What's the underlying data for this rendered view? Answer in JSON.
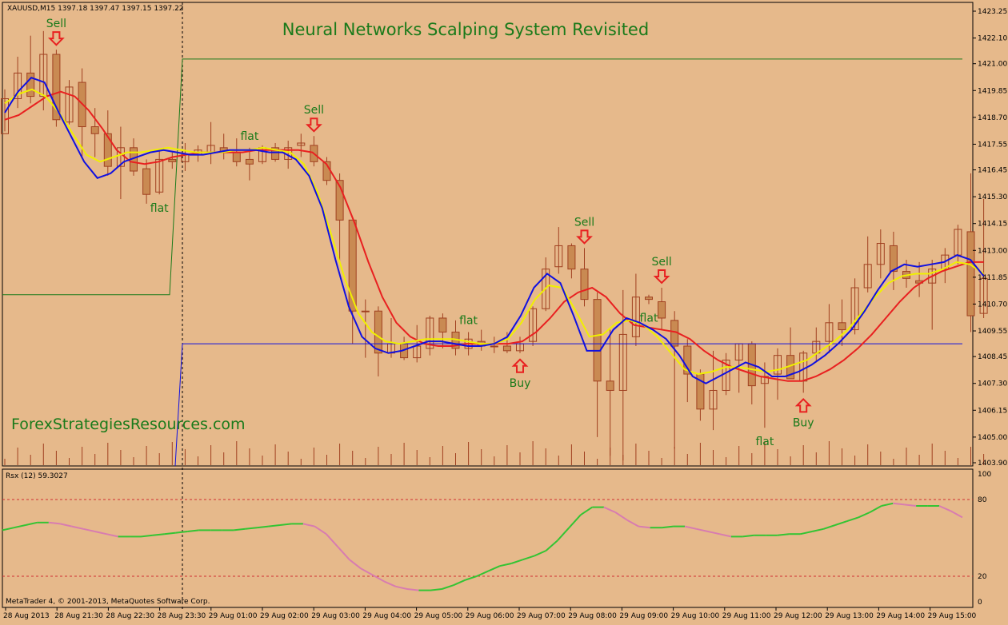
{
  "header": {
    "symbol_info": "XAUUSD,M15  1397.18 1397.47 1397.15 1397.22",
    "title": "Neural Networks Scalping System Revisited",
    "watermark": "ForexStrategiesResources.com",
    "copyright": "MetaTrader 4, © 2001-2013, MetaQuotes Software Corp."
  },
  "colors": {
    "background": "#e6b98b",
    "candle": "#c98a52",
    "wick": "#a04020",
    "blue_line": "#1010e0",
    "yellow_line": "#f0f000",
    "red_line": "#e82020",
    "green_line": "#1a7a1a",
    "signal_text": "#1a7a1a",
    "arrow": "#e82020",
    "rsx_up": "#33c433",
    "rsx_down": "#d87cb0",
    "level_line": "#d03030"
  },
  "annotations": [
    {
      "text": "Sell",
      "type": "sell",
      "bar": 4
    },
    {
      "text": "flat",
      "type": "flat",
      "bar": 12
    },
    {
      "text": "flat",
      "type": "flat",
      "bar": 19
    },
    {
      "text": "Sell",
      "type": "sell",
      "bar": 24
    },
    {
      "text": "flat",
      "type": "flat",
      "bar": 36
    },
    {
      "text": "Buy",
      "type": "buy",
      "bar": 40
    },
    {
      "text": "Sell",
      "type": "sell",
      "bar": 45
    },
    {
      "text": "flat",
      "type": "flat",
      "bar": 50
    },
    {
      "text": "Sell",
      "type": "sell",
      "bar": 51
    },
    {
      "text": "flat",
      "type": "flat",
      "bar": 59
    },
    {
      "text": "Buy",
      "type": "buy",
      "bar": 62
    }
  ],
  "chart_data": [
    {
      "type": "candlestick",
      "ylim": [
        1403.9,
        1423.25
      ],
      "y_ticks": [
        "1423.25",
        "1422.10",
        "1421.00",
        "1419.85",
        "1418.70",
        "1417.55",
        "1416.45",
        "1415.30",
        "1414.15",
        "1413.00",
        "1411.85",
        "1410.70",
        "1409.55",
        "1408.45",
        "1407.30",
        "1406.15",
        "1405.00",
        "1403.90"
      ],
      "x_ticks": [
        "28 Aug 2013",
        "28 Aug 21:30",
        "28 Aug 22:30",
        "28 Aug 23:30",
        "29 Aug 01:00",
        "29 Aug 02:00",
        "29 Aug 03:00",
        "29 Aug 04:00",
        "29 Aug 05:00",
        "29 Aug 06:00",
        "29 Aug 07:00",
        "29 Aug 08:00",
        "29 Aug 09:00",
        "29 Aug 10:00",
        "29 Aug 11:00",
        "29 Aug 12:00",
        "29 Aug 13:00",
        "29 Aug 14:00",
        "29 Aug 15:00"
      ],
      "ohlc": [
        [
          1418.0,
          1419.9,
          1418.1,
          1419.5
        ],
        [
          1419.5,
          1421.3,
          1419.1,
          1420.6
        ],
        [
          1420.6,
          1422.2,
          1419.3,
          1419.6
        ],
        [
          1419.6,
          1422.4,
          1419.0,
          1421.4
        ],
        [
          1421.4,
          1421.6,
          1418.3,
          1418.6
        ],
        [
          1418.5,
          1420.3,
          1418.4,
          1420.0
        ],
        [
          1420.2,
          1420.8,
          1417.0,
          1418.3
        ],
        [
          1418.3,
          1419.1,
          1417.0,
          1418.0
        ],
        [
          1418.0,
          1419.0,
          1416.2,
          1416.6
        ],
        [
          1416.6,
          1418.3,
          1415.2,
          1417.4
        ],
        [
          1417.4,
          1417.8,
          1416.2,
          1416.4
        ],
        [
          1416.5,
          1416.9,
          1415.0,
          1415.4
        ],
        [
          1415.5,
          1417.3,
          1415.4,
          1416.9
        ],
        [
          1416.9,
          1417.2,
          1416.5,
          1416.8
        ],
        [
          1416.8,
          1417.6,
          1416.4,
          1417.1
        ],
        [
          1417.1,
          1417.5,
          1416.8,
          1417.3
        ],
        [
          1417.2,
          1418.5,
          1416.7,
          1417.5
        ],
        [
          1417.4,
          1418.0,
          1416.9,
          1417.2
        ],
        [
          1417.2,
          1417.8,
          1416.6,
          1416.8
        ],
        [
          1416.9,
          1417.4,
          1416.0,
          1416.7
        ],
        [
          1416.8,
          1417.5,
          1416.7,
          1417.4
        ],
        [
          1417.4,
          1417.6,
          1416.8,
          1416.9
        ],
        [
          1416.9,
          1417.7,
          1416.5,
          1417.4
        ],
        [
          1417.5,
          1418.0,
          1417.0,
          1417.6
        ],
        [
          1417.5,
          1417.9,
          1416.6,
          1416.8
        ],
        [
          1416.8,
          1417.0,
          1415.8,
          1416.0
        ],
        [
          1416.0,
          1416.3,
          1412.5,
          1414.3
        ],
        [
          1414.3,
          1414.3,
          1409.0,
          1410.4
        ],
        [
          1410.4,
          1410.9,
          1408.4,
          1410.4
        ],
        [
          1410.4,
          1410.6,
          1407.6,
          1408.6
        ],
        [
          1408.6,
          1410.1,
          1408.4,
          1409.0
        ],
        [
          1409.0,
          1409.3,
          1408.3,
          1408.4
        ],
        [
          1408.4,
          1409.8,
          1408.2,
          1408.9
        ],
        [
          1408.8,
          1410.2,
          1408.5,
          1410.1
        ],
        [
          1410.1,
          1410.3,
          1408.8,
          1409.5
        ],
        [
          1409.5,
          1410.0,
          1408.5,
          1408.8
        ],
        [
          1408.8,
          1409.5,
          1408.5,
          1409.2
        ],
        [
          1409.1,
          1409.6,
          1408.7,
          1408.9
        ],
        [
          1408.9,
          1409.3,
          1408.6,
          1408.9
        ],
        [
          1408.9,
          1409.5,
          1408.6,
          1408.7
        ],
        [
          1408.7,
          1409.3,
          1408.6,
          1409.0
        ],
        [
          1409.1,
          1410.6,
          1408.9,
          1410.5
        ],
        [
          1410.5,
          1412.7,
          1410.4,
          1412.2
        ],
        [
          1412.3,
          1414.0,
          1412.0,
          1413.2
        ],
        [
          1413.2,
          1413.3,
          1411.8,
          1412.2
        ],
        [
          1412.2,
          1413.1,
          1410.6,
          1410.9
        ],
        [
          1410.9,
          1411.2,
          1405.0,
          1407.4
        ],
        [
          1407.4,
          1409.6,
          1404.2,
          1407.0
        ],
        [
          1407.0,
          1411.3,
          1404.0,
          1409.4
        ],
        [
          1409.3,
          1412.0,
          1408.9,
          1411.0
        ],
        [
          1411.0,
          1411.1,
          1410.7,
          1410.9
        ],
        [
          1410.8,
          1411.4,
          1409.6,
          1410.1
        ],
        [
          1410.0,
          1410.4,
          1404.5,
          1408.9
        ],
        [
          1408.9,
          1409.2,
          1406.5,
          1407.7
        ],
        [
          1407.7,
          1407.9,
          1405.7,
          1406.2
        ],
        [
          1406.2,
          1408.7,
          1405.3,
          1407.0
        ],
        [
          1407.0,
          1408.6,
          1406.8,
          1408.3
        ],
        [
          1408.3,
          1409.0,
          1406.9,
          1409.0
        ],
        [
          1409.0,
          1409.1,
          1406.4,
          1407.2
        ],
        [
          1407.3,
          1408.2,
          1405.4,
          1407.6
        ],
        [
          1407.7,
          1408.8,
          1406.6,
          1408.5
        ],
        [
          1408.5,
          1409.7,
          1407.5,
          1407.5
        ],
        [
          1407.4,
          1408.7,
          1406.9,
          1408.6
        ],
        [
          1408.6,
          1409.7,
          1408.2,
          1409.1
        ],
        [
          1409.1,
          1410.7,
          1408.6,
          1409.9
        ],
        [
          1409.9,
          1410.9,
          1408.9,
          1409.6
        ],
        [
          1409.6,
          1411.8,
          1409.4,
          1411.4
        ],
        [
          1411.4,
          1413.6,
          1411.2,
          1412.4
        ],
        [
          1412.4,
          1413.9,
          1411.8,
          1413.3
        ],
        [
          1413.2,
          1413.8,
          1411.3,
          1412.1
        ],
        [
          1412.1,
          1412.6,
          1411.4,
          1411.8
        ],
        [
          1411.7,
          1412.5,
          1411.0,
          1411.6
        ],
        [
          1411.6,
          1412.6,
          1409.6,
          1412.2
        ],
        [
          1412.2,
          1413.1,
          1411.6,
          1412.8
        ],
        [
          1412.8,
          1414.1,
          1412.4,
          1413.9
        ],
        [
          1413.8,
          1416.3,
          1409.5,
          1410.2
        ],
        [
          1410.3,
          1415.2,
          1410.1,
          1411.8
        ]
      ],
      "series": [
        {
          "name": "",
          "color": "#1010e0",
          "values": [
            1418.9,
            1419.8,
            1420.4,
            1420.2,
            1419.0,
            1417.9,
            1416.8,
            1416.1,
            1416.3,
            1416.8,
            1417.0,
            1417.2,
            1417.3,
            1417.2,
            1417.1,
            1417.1,
            1417.2,
            1417.3,
            1417.3,
            1417.3,
            1417.2,
            1417.2,
            1416.9,
            1416.2,
            1414.8,
            1412.6,
            1410.6,
            1409.3,
            1408.8,
            1408.6,
            1408.7,
            1408.9,
            1409.1,
            1409.1,
            1409.0,
            1408.9,
            1408.9,
            1409.0,
            1409.3,
            1410.2,
            1411.4,
            1412.0,
            1411.6,
            1410.2,
            1408.7,
            1408.7,
            1409.6,
            1410.1,
            1409.9,
            1409.6,
            1409.2,
            1408.5,
            1407.6,
            1407.3,
            1407.6,
            1407.9,
            1408.2,
            1408.0,
            1407.6,
            1407.6,
            1407.8,
            1408.1,
            1408.5,
            1409.0,
            1409.6,
            1410.4,
            1411.3,
            1412.1,
            1412.4,
            1412.3,
            1412.4,
            1412.5,
            1412.8,
            1412.6,
            1411.9
          ]
        },
        {
          "name": "",
          "color": "#f0f000",
          "values": [
            1419.3,
            1419.7,
            1419.9,
            1419.6,
            1418.9,
            1418.0,
            1417.1,
            1416.8,
            1417.0,
            1417.2,
            1417.2,
            1417.3,
            1417.4,
            1417.3,
            1417.2,
            1417.2,
            1417.2,
            1417.3,
            1417.3,
            1417.4,
            1417.3,
            1417.2,
            1416.7,
            1415.5,
            1413.7,
            1411.8,
            1410.3,
            1409.5,
            1409.1,
            1409.0,
            1409.1,
            1409.2,
            1409.2,
            1409.2,
            1409.1,
            1409.0,
            1409.0,
            1409.2,
            1409.9,
            1410.9,
            1411.5,
            1411.4,
            1410.4,
            1409.3,
            1409.4,
            1409.9,
            1410.0,
            1409.8,
            1409.3,
            1408.6,
            1407.9,
            1407.7,
            1407.8,
            1408.0,
            1408.0,
            1407.9,
            1407.8,
            1407.9,
            1408.1,
            1408.3,
            1408.7,
            1409.1,
            1409.6,
            1410.3,
            1411.0,
            1411.6,
            1411.9,
            1412.0,
            1412.0,
            1412.2,
            1412.5,
            1412.4,
            1412.0
          ]
        },
        {
          "name": "",
          "color": "#e82020",
          "values": [
            1418.6,
            1418.8,
            1419.2,
            1419.6,
            1419.8,
            1419.6,
            1419.0,
            1418.2,
            1417.3,
            1416.8,
            1416.7,
            1416.8,
            1417.0,
            1417.1,
            1417.2,
            1417.2,
            1417.2,
            1417.2,
            1417.3,
            1417.3,
            1417.3,
            1417.3,
            1417.2,
            1416.7,
            1415.7,
            1414.2,
            1412.5,
            1411.0,
            1409.9,
            1409.3,
            1409.0,
            1408.9,
            1408.9,
            1409.0,
            1409.0,
            1409.0,
            1409.0,
            1409.1,
            1409.5,
            1410.1,
            1410.8,
            1411.2,
            1411.4,
            1411.0,
            1410.3,
            1409.8,
            1409.7,
            1409.6,
            1409.5,
            1409.2,
            1408.7,
            1408.3,
            1408.0,
            1407.8,
            1407.6,
            1407.5,
            1407.4,
            1407.4,
            1407.6,
            1407.9,
            1408.3,
            1408.8,
            1409.4,
            1410.1,
            1410.8,
            1411.4,
            1411.8,
            1412.1,
            1412.3,
            1412.5,
            1412.5
          ]
        },
        {
          "name": "",
          "color": "#1a7a1a",
          "values": [
            1411.1,
            1411.1,
            1411.1,
            1411.1,
            1421.2,
            1421.2
          ]
        },
        {
          "name": "",
          "color": "#1010e0",
          "values": [
            1409.0,
            1409.0
          ]
        }
      ]
    },
    {
      "type": "line",
      "title": "Rsx (12) 59.3027",
      "ylim": [
        0,
        100
      ],
      "y_ticks": [
        "100",
        "80",
        "20",
        "0"
      ],
      "levels": [
        80,
        20
      ],
      "values": [
        56,
        58,
        60,
        62,
        62,
        61,
        59,
        57,
        55,
        53,
        51,
        51,
        51,
        52,
        53,
        54,
        55,
        56,
        56,
        56,
        56,
        57,
        58,
        59,
        60,
        61,
        61,
        59,
        53,
        43,
        33,
        26,
        21,
        16,
        12,
        10,
        9,
        9,
        10,
        13,
        17,
        20,
        24,
        28,
        30,
        33,
        36,
        40,
        48,
        58,
        68,
        74,
        74,
        70,
        64,
        59,
        58,
        58,
        59,
        59,
        57,
        55,
        53,
        51,
        51,
        52,
        52,
        52,
        53,
        53,
        55,
        57,
        60,
        63,
        66,
        70,
        75,
        77,
        76,
        75,
        75,
        75,
        71,
        66
      ]
    }
  ]
}
